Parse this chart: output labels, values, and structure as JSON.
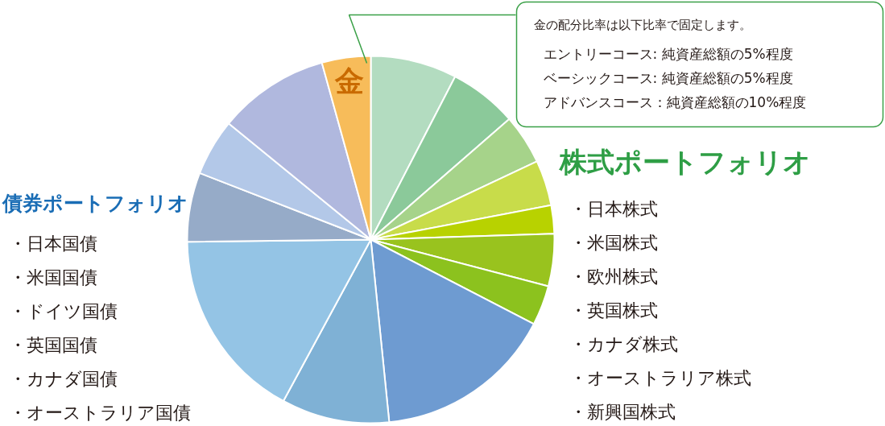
{
  "chart_data": {
    "type": "pie",
    "categories": [
      null,
      null,
      null,
      null,
      null,
      null,
      null,
      null,
      null,
      null,
      null,
      null,
      null,
      "金"
    ],
    "values": [
      7.6,
      6.0,
      4.4,
      4.0,
      2.5,
      4.6,
      3.5,
      15.8,
      9.5,
      16.9,
      6.1,
      5.0,
      9.8,
      4.3
    ],
    "colors": [
      "#b3dcc0",
      "#8bc99a",
      "#a6d38a",
      "#c8dc4a",
      "#b8d200",
      "#99c31e",
      "#8cc21e",
      "#6e9bd1",
      "#7fb1d5",
      "#94c4e5",
      "#96abc8",
      "#b3c8e8",
      "#b0b8de",
      "#f7bc5a"
    ],
    "annotations": [
      "金の配分比率は以下比率で固定します。",
      "エントリーコース: 純資産総額の5%程度",
      "ベーシックコース: 純資産総額の5%程度",
      "アドバンスコース：純資産総額の10%程度",
      "株式ポートフォリオ",
      "・日本株式",
      "・米国株式",
      "・欧州株式",
      "・英国株式",
      "・カナダ株式",
      "・オーストラリア株式",
      "・新興国株式",
      "債券ポートフォリオ",
      "・日本国債",
      "・米国国債",
      "・ドイツ国債",
      "・英国国債",
      "・カナダ国債",
      "・オーストラリア国債"
    ]
  }
}
